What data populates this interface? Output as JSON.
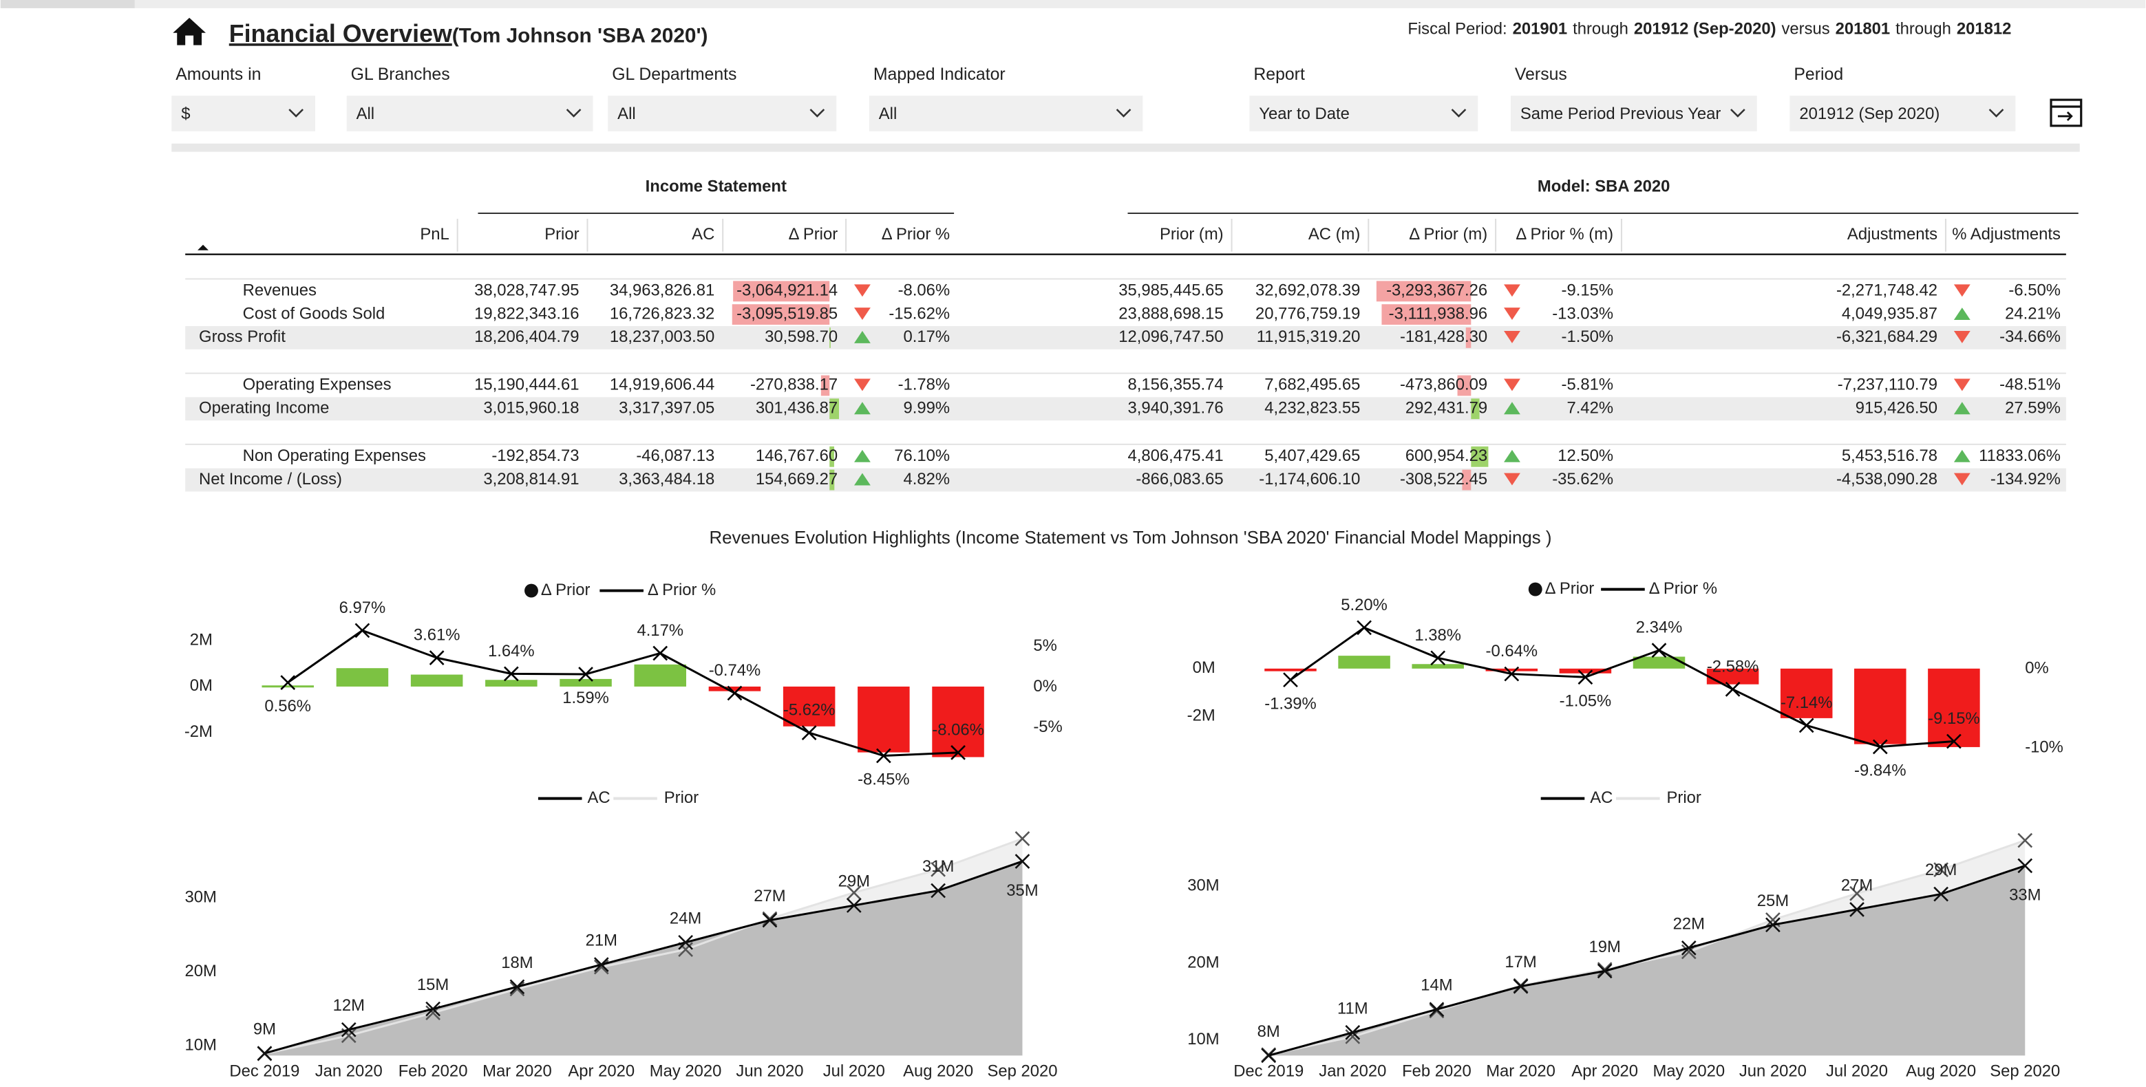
{
  "header": {
    "title": "Financial Overview",
    "subtitle": "(Tom Johnson 'SBA 2020')",
    "fiscal_period": [
      "Fiscal Period:",
      "201901",
      "through",
      "201912 (Sep-2020)",
      "versus",
      "201801",
      "through",
      "201812"
    ]
  },
  "filters": [
    {
      "label": "Amounts in",
      "value": "$"
    },
    {
      "label": "GL Branches",
      "value": "All"
    },
    {
      "label": "GL Departments",
      "value": "All"
    },
    {
      "label": "Mapped Indicator",
      "value": "All"
    },
    {
      "label": "Report",
      "value": "Year to Date"
    },
    {
      "label": "Versus",
      "value": "Same Period Previous Year"
    },
    {
      "label": "Period",
      "value": "201912 (Sep 2020)"
    }
  ],
  "table": {
    "groups": [
      "Income Statement",
      "Model: SBA 2020"
    ],
    "columns": [
      "PnL",
      "Prior",
      "AC",
      "Δ Prior",
      "Δ Prior %",
      "Prior (m)",
      "AC (m)",
      "Δ Prior (m)",
      "Δ Prior % (m)",
      "Adjustments",
      "% Adjustments"
    ],
    "sections": [
      [
        {
          "level": 1,
          "cells": [
            "Revenues",
            "38,028,747.95",
            "34,963,826.81",
            "-3,064,921.14",
            "-8.06%",
            "35,985,445.65",
            "32,692,078.39",
            "-3,293,367.26",
            "-9.15%",
            "-2,271,748.42",
            "-6.50%"
          ]
        },
        {
          "level": 1,
          "cells": [
            "Cost of Goods Sold",
            "19,822,343.16",
            "16,726,823.32",
            "-3,095,519.85",
            "-15.62%",
            "23,888,698.15",
            "20,776,759.19",
            "-3,111,938.96",
            "-13.03%",
            "4,049,935.87",
            "24.21%"
          ]
        },
        {
          "level": 0,
          "cells": [
            "Gross Profit",
            "18,206,404.79",
            "18,237,003.50",
            "30,598.70",
            "0.17%",
            "12,096,747.50",
            "11,915,319.20",
            "-181,428.30",
            "-1.50%",
            "-6,321,684.29",
            "-34.66%"
          ]
        }
      ],
      [
        {
          "level": 1,
          "cells": [
            "Operating Expenses",
            "15,190,444.61",
            "14,919,606.44",
            "-270,838.17",
            "-1.78%",
            "8,156,355.74",
            "7,682,495.65",
            "-473,860.09",
            "-5.81%",
            "-7,237,110.79",
            "-48.51%"
          ]
        },
        {
          "level": 0,
          "cells": [
            "Operating Income",
            "3,015,960.18",
            "3,317,397.05",
            "301,436.87",
            "9.99%",
            "3,940,391.76",
            "4,232,823.55",
            "292,431.79",
            "7.42%",
            "915,426.50",
            "27.59%"
          ]
        }
      ],
      [
        {
          "level": 1,
          "cells": [
            "Non Operating Expenses",
            "-192,854.73",
            "-46,087.13",
            "146,767.60",
            "76.10%",
            "4,806,475.41",
            "5,407,429.65",
            "600,954.23",
            "12.50%",
            "5,453,516.78",
            "11833.06%"
          ]
        },
        {
          "level": 0,
          "cells": [
            "Net Income / (Loss)",
            "3,208,814.91",
            "3,363,484.18",
            "154,669.27",
            "4.82%",
            "-866,083.65",
            "-1,174,606.10",
            "-308,522.45",
            "-35.62%",
            "-4,538,090.28",
            "-134.92%"
          ]
        }
      ]
    ]
  },
  "charts_title": "Revenues Evolution Highlights (Income Statement vs Tom Johnson 'SBA 2020' Financial Model Mappings )",
  "chart_data": [
    {
      "type": "combo",
      "series": [
        {
          "name": "Δ Prior",
          "color": "#7cc242",
          "negative_color": "#f01c1c",
          "values": [
            50000,
            800000,
            520000,
            290000,
            330000,
            960000,
            -200000,
            -1730000,
            -2860000,
            -3064921
          ]
        },
        {
          "name": "Δ Prior %",
          "color": "#000000",
          "axis": "y2",
          "values": [
            0.56,
            6.97,
            3.61,
            1.64,
            1.59,
            4.17,
            -0.74,
            -5.62,
            -8.45,
            -8.06
          ],
          "value_labels": [
            "0.56%",
            "6.97%",
            "3.61%",
            "1.64%",
            "1.59%",
            "4.17%",
            "-0.74%",
            "-5.62%",
            "-8.45%",
            "-8.06%"
          ]
        }
      ],
      "ylim": [
        -3200000,
        2800000
      ],
      "yticks": [
        {
          "value": -2000000,
          "label": "-2M"
        },
        {
          "value": 0,
          "label": "0M"
        },
        {
          "value": 2000000,
          "label": "2M"
        }
      ],
      "y2lim": [
        -9,
        8
      ],
      "y2ticks": [
        {
          "value": -5,
          "label": "-5%"
        },
        {
          "value": 0,
          "label": "0%"
        },
        {
          "value": 5,
          "label": "5%"
        }
      ]
    },
    {
      "type": "combo",
      "series": [
        {
          "name": "Δ Prior",
          "color": "#7cc242",
          "negative_color": "#f01c1c",
          "values": [
            -110000,
            540000,
            190000,
            -110000,
            -200000,
            500000,
            -660000,
            -2080000,
            -3170000,
            -3293367
          ]
        },
        {
          "name": "Δ Prior %",
          "color": "#000000",
          "axis": "y2",
          "values": [
            -1.39,
            5.2,
            1.38,
            -0.64,
            -1.05,
            2.34,
            -2.58,
            -7.14,
            -9.84,
            -9.15
          ],
          "value_labels": [
            "-1.39%",
            "5.20%",
            "1.38%",
            "-0.64%",
            "-1.05%",
            "2.34%",
            "-2.58%",
            "-7.14%",
            "-9.84%",
            "-9.15%"
          ]
        }
      ],
      "ylim": [
        -3500000,
        1950000
      ],
      "yticks": [
        {
          "value": -2000000,
          "label": "-2M"
        },
        {
          "value": 0,
          "label": "0M"
        }
      ],
      "y2lim": [
        -10.5,
        5.9
      ],
      "y2ticks": [
        {
          "value": -10,
          "label": "-10%"
        },
        {
          "value": 0,
          "label": "0%"
        }
      ]
    },
    {
      "type": "area",
      "categories": [
        "Dec 2019",
        "Jan 2020",
        "Feb 2020",
        "Mar 2020",
        "Apr 2020",
        "May 2020",
        "Jun 2020",
        "Jul 2020",
        "Aug 2020",
        "Sep 2020"
      ],
      "series": [
        {
          "name": "Prior",
          "color": "#e3e3e3",
          "fill": "#f0f0f0",
          "values": [
            8950000,
            11400000,
            14480000,
            17710000,
            20670000,
            23040000,
            27200000,
            30730000,
            33860000,
            38028748
          ]
        },
        {
          "name": "AC",
          "color": "#000000",
          "fill": "#bdbdbd",
          "values": [
            9000000,
            12200000,
            15000000,
            18000000,
            21000000,
            24000000,
            27000000,
            29000000,
            31000000,
            34963827
          ],
          "value_labels": [
            "9M",
            "12M",
            "15M",
            "18M",
            "21M",
            "24M",
            "27M",
            "29M",
            "31M",
            "35M"
          ]
        }
      ],
      "ylim": [
        8700000,
        40500000
      ],
      "yticks": [
        {
          "value": 10000000,
          "label": "10M"
        },
        {
          "value": 20000000,
          "label": "20M"
        },
        {
          "value": 30000000,
          "label": "30M"
        }
      ]
    },
    {
      "type": "area",
      "categories": [
        "Dec 2019",
        "Jan 2020",
        "Feb 2020",
        "Mar 2020",
        "Apr 2020",
        "May 2020",
        "Jun 2020",
        "Jul 2020",
        "Aug 2020",
        "Sep 2020"
      ],
      "series": [
        {
          "name": "Prior",
          "color": "#e3e3e3",
          "fill": "#f0f0f0",
          "values": [
            8110000,
            10460000,
            13810000,
            17110000,
            19200000,
            21500000,
            25660000,
            29080000,
            32170000,
            35985446
          ]
        },
        {
          "name": "AC",
          "color": "#000000",
          "fill": "#bdbdbd",
          "values": [
            8000000,
            11000000,
            14000000,
            17000000,
            19000000,
            22000000,
            25000000,
            27000000,
            29000000,
            32692078
          ],
          "value_labels": [
            "8M",
            "11M",
            "14M",
            "17M",
            "19M",
            "22M",
            "25M",
            "27M",
            "29M",
            "33M"
          ]
        }
      ],
      "ylim": [
        8000000,
        37700000
      ],
      "yticks": [
        {
          "value": 10000000,
          "label": "10M"
        },
        {
          "value": 20000000,
          "label": "20M"
        },
        {
          "value": 30000000,
          "label": "30M"
        }
      ]
    }
  ]
}
